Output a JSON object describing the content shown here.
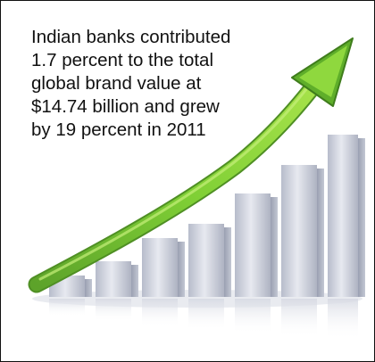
{
  "caption": {
    "lines": [
      "Indian banks contributed",
      "1.7 percent to the total",
      "global brand value at",
      "$14.74 billion and grew",
      "by 19 percent in 2011"
    ]
  },
  "illustration": {
    "subject": "rising-bar-chart-with-arrow",
    "bar_count": 7,
    "colors": {
      "bar": "#c9ccd6",
      "arrow": "#6cbf2a"
    }
  }
}
